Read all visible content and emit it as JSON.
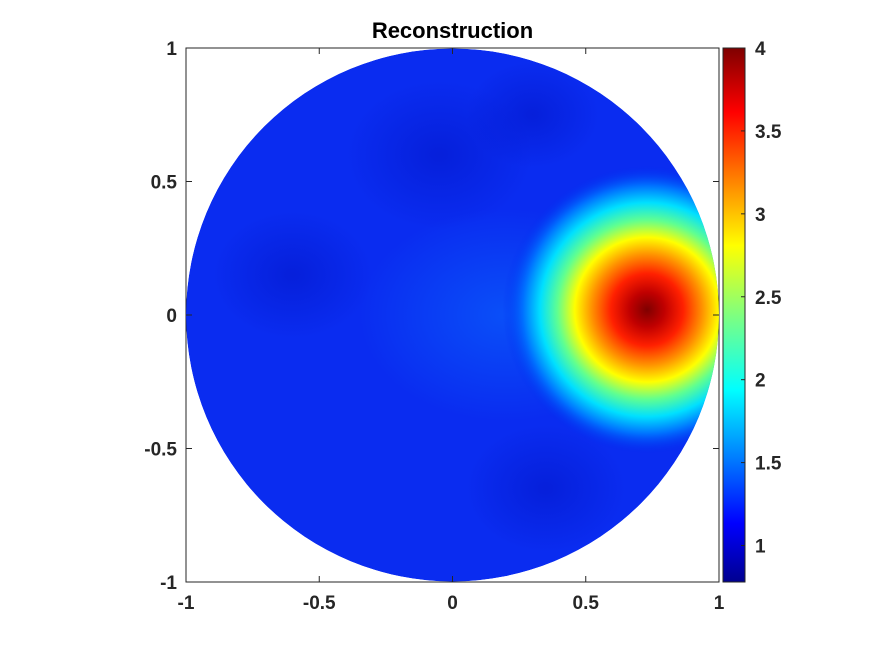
{
  "chart_data": {
    "type": "heatmap",
    "title": "Reconstruction",
    "xlabel": "",
    "ylabel": "",
    "xlim": [
      -1,
      1
    ],
    "ylim": [
      -1,
      1
    ],
    "domain": "unit disk",
    "x_ticks": [
      "-1",
      "-0.5",
      "0",
      "0.5",
      "1"
    ],
    "y_ticks": [
      "1",
      "0.5",
      "0",
      "-0.5",
      "-1"
    ],
    "colormap": "jet",
    "colorbar": {
      "range": [
        0.78,
        4.0
      ],
      "ticks": [
        "4",
        "3.5",
        "3",
        "2.5",
        "2",
        "1.5",
        "1"
      ]
    },
    "background_level": 1.0,
    "peak": {
      "x": 0.73,
      "y": 0.02,
      "value": 4.0
    },
    "lobe_extent": {
      "x_min": 0.3,
      "x_max": 1.0,
      "y_min": -0.35,
      "y_max": 0.35
    },
    "grid": false,
    "legend": "colorbar at right"
  }
}
